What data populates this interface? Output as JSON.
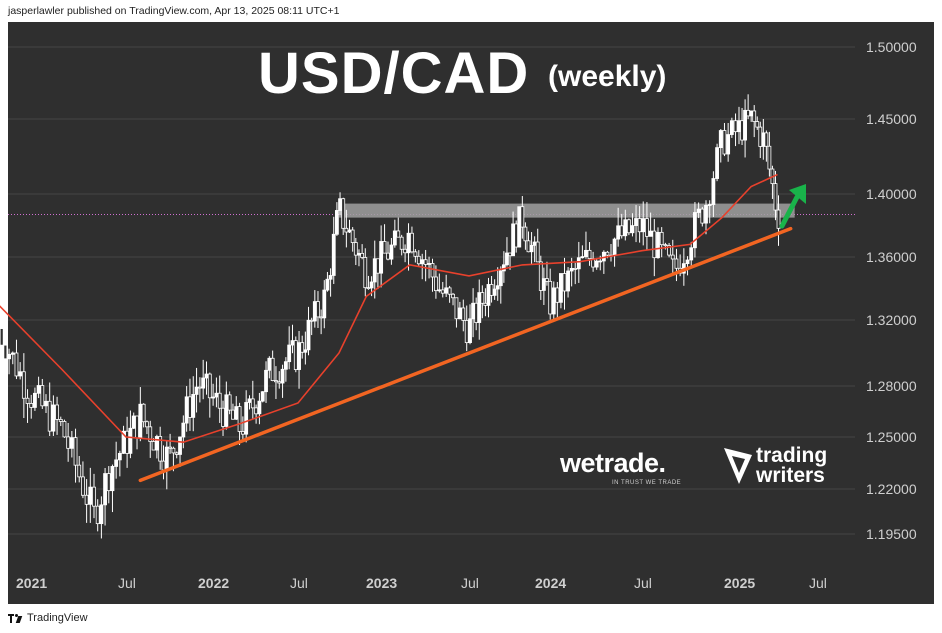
{
  "header": {
    "text": "jasperlawler published on TradingView.com, Apr 13, 2025 08:11 UTC+1"
  },
  "footer": {
    "brand": "TradingView"
  },
  "overlay": {
    "title": "USD/CAD",
    "subtitle": "(weekly)",
    "wetrade": "wetrade.",
    "wetrade_tagline": "IN TRUST WE TRADE",
    "trading_writers_line1": "trading",
    "trading_writers_line2": "writers"
  },
  "colors": {
    "background": "#2f2f2f",
    "candles": "#ffffff",
    "moving_average": "#e8412c",
    "trendline": "#f26522",
    "resistance_zone": "#a0a0a0",
    "arrow": "#19b34a",
    "axis_text": "#cfcfcf"
  },
  "chart_data": {
    "type": "candlestick",
    "title": "USD/CAD",
    "subtitle": "(weekly)",
    "y_ticks": [
      "1.50000",
      "1.45000",
      "1.40000",
      "1.36000",
      "1.32000",
      "1.28000",
      "1.25000",
      "1.22000",
      "1.19500"
    ],
    "x_ticks": [
      "2021",
      "Jul",
      "2022",
      "Jul",
      "2023",
      "Jul",
      "2024",
      "Jul",
      "2025",
      "Jul"
    ],
    "x_tick_dates": [
      "2021-01",
      "2021-07",
      "2022-01",
      "2022-07",
      "2023-01",
      "2023-07",
      "2024-01",
      "2024-07",
      "2025-01",
      "2025-07"
    ],
    "approx_close_path": [
      {
        "x": "2020-11",
        "y": 1.315
      },
      {
        "x": "2021-01",
        "y": 1.275
      },
      {
        "x": "2021-03",
        "y": 1.255
      },
      {
        "x": "2021-05",
        "y": 1.205
      },
      {
        "x": "2021-06",
        "y": 1.232
      },
      {
        "x": "2021-08",
        "y": 1.262
      },
      {
        "x": "2021-10",
        "y": 1.237
      },
      {
        "x": "2021-12",
        "y": 1.282
      },
      {
        "x": "2022-03",
        "y": 1.255
      },
      {
        "x": "2022-05",
        "y": 1.288
      },
      {
        "x": "2022-07",
        "y": 1.3
      },
      {
        "x": "2022-09",
        "y": 1.335
      },
      {
        "x": "2022-10",
        "y": 1.39
      },
      {
        "x": "2022-12",
        "y": 1.35
      },
      {
        "x": "2023-03",
        "y": 1.375
      },
      {
        "x": "2023-05",
        "y": 1.34
      },
      {
        "x": "2023-07",
        "y": 1.315
      },
      {
        "x": "2023-09",
        "y": 1.35
      },
      {
        "x": "2023-11",
        "y": 1.385
      },
      {
        "x": "2024-01",
        "y": 1.33
      },
      {
        "x": "2024-03",
        "y": 1.355
      },
      {
        "x": "2024-05",
        "y": 1.37
      },
      {
        "x": "2024-07",
        "y": 1.38
      },
      {
        "x": "2024-09",
        "y": 1.35
      },
      {
        "x": "2024-11",
        "y": 1.395
      },
      {
        "x": "2024-12",
        "y": 1.435
      },
      {
        "x": "2025-02",
        "y": 1.45
      },
      {
        "x": "2025-03",
        "y": 1.435
      },
      {
        "x": "2025-04",
        "y": 1.387
      }
    ],
    "moving_average_path": [
      {
        "x": "2020-11",
        "y": 1.33
      },
      {
        "x": "2021-03",
        "y": 1.29
      },
      {
        "x": "2021-07",
        "y": 1.25
      },
      {
        "x": "2021-11",
        "y": 1.247
      },
      {
        "x": "2022-03",
        "y": 1.258
      },
      {
        "x": "2022-07",
        "y": 1.27
      },
      {
        "x": "2022-10",
        "y": 1.3
      },
      {
        "x": "2022-12",
        "y": 1.335
      },
      {
        "x": "2023-03",
        "y": 1.355
      },
      {
        "x": "2023-07",
        "y": 1.348
      },
      {
        "x": "2023-11",
        "y": 1.355
      },
      {
        "x": "2024-03",
        "y": 1.357
      },
      {
        "x": "2024-07",
        "y": 1.364
      },
      {
        "x": "2024-10",
        "y": 1.368
      },
      {
        "x": "2024-12",
        "y": 1.385
      },
      {
        "x": "2025-02",
        "y": 1.405
      },
      {
        "x": "2025-04",
        "y": 1.413
      }
    ],
    "trendline": {
      "start": {
        "x": "2021-08",
        "y": 1.225
      },
      "end": {
        "x": "2025-05",
        "y": 1.378
      }
    },
    "resistance_zone": {
      "x_start": "2022-10",
      "x_end": "2025-05",
      "y_low": 1.385,
      "y_high": 1.392
    },
    "reference_line": 1.387,
    "arrow_direction": "up"
  }
}
